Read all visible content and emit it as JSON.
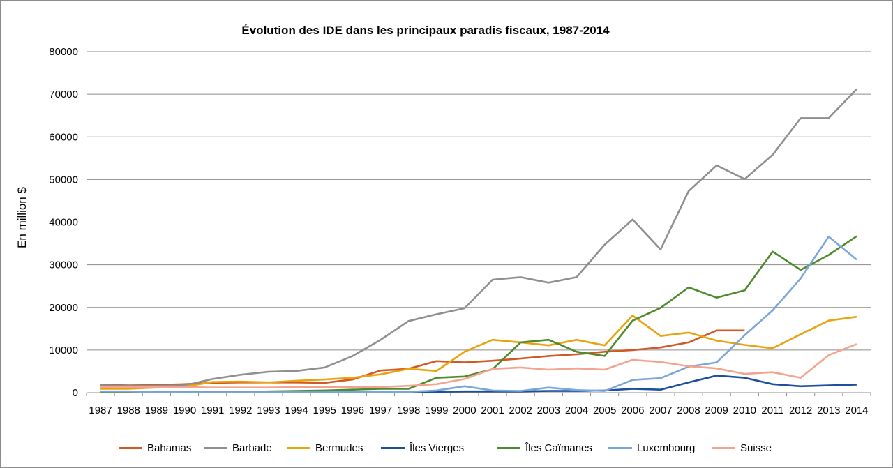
{
  "chart_data": {
    "type": "line",
    "title": "Évolution des IDE dans les principaux paradis fiscaux, 1987-2014",
    "xlabel": "",
    "ylabel": "En million $",
    "ylim": [
      0,
      80000
    ],
    "yticks": [
      "0",
      "10000",
      "20000",
      "30000",
      "40000",
      "50000",
      "60000",
      "70000",
      "80000"
    ],
    "grid": true,
    "legend_position": "bottom",
    "categories": [
      "1987",
      "1988",
      "1989",
      "1990",
      "1991",
      "1992",
      "1993",
      "1994",
      "1995",
      "1996",
      "1997",
      "1998",
      "1999",
      "2000",
      "2001",
      "2002",
      "2003",
      "2004",
      "2005",
      "2006",
      "2007",
      "2008",
      "2009",
      "2010",
      "2011",
      "2012",
      "2013",
      "2014"
    ],
    "series": [
      {
        "name": "Bahamas",
        "color": "#cf5a25",
        "values": [
          1900,
          1700,
          1800,
          2000,
          2300,
          2400,
          2400,
          2400,
          2300,
          3100,
          5200,
          5600,
          7400,
          7100,
          7500,
          8000,
          8600,
          9000,
          9600,
          10000,
          10600,
          11800,
          14600,
          14600,
          null,
          null,
          null,
          null
        ]
      },
      {
        "name": "Barbade",
        "color": "#8f8f8f",
        "values": [
          1700,
          1600,
          1600,
          1700,
          3200,
          4200,
          4900,
          5100,
          5900,
          8600,
          12400,
          16800,
          18400,
          19800,
          26500,
          27100,
          25800,
          27100,
          34700,
          40600,
          33600,
          47300,
          53300,
          50100,
          55800,
          64400,
          64400,
          71200
        ]
      },
      {
        "name": "Bermudes",
        "color": "#e9a30f",
        "values": [
          900,
          900,
          1200,
          1400,
          2500,
          2600,
          2400,
          2800,
          3100,
          3500,
          4300,
          5600,
          5100,
          9600,
          12400,
          11800,
          11100,
          12400,
          11100,
          18100,
          13300,
          14100,
          12200,
          11200,
          10400,
          13700,
          16900,
          17800
        ]
      },
      {
        "name": "Îles Vierges",
        "color": "#1e4f9a",
        "values": [
          100,
          100,
          100,
          100,
          100,
          100,
          100,
          200,
          200,
          200,
          200,
          200,
          200,
          300,
          300,
          300,
          400,
          400,
          500,
          900,
          700,
          2400,
          4000,
          3500,
          2000,
          1500,
          1700,
          1900
        ]
      },
      {
        "name": "Îles Caïmanes",
        "color": "#4c8b2b",
        "values": [
          100,
          100,
          100,
          100,
          200,
          200,
          300,
          400,
          500,
          700,
          900,
          900,
          3500,
          3800,
          5500,
          11800,
          12400,
          9600,
          8600,
          16900,
          19900,
          24700,
          22300,
          24000,
          33100,
          28800,
          32300,
          36700
        ]
      },
      {
        "name": "Luxembourg",
        "color": "#7aa6da",
        "values": [
          300,
          300,
          100,
          100,
          100,
          100,
          100,
          100,
          100,
          200,
          200,
          200,
          500,
          1500,
          500,
          400,
          1200,
          600,
          400,
          3000,
          3400,
          6100,
          7100,
          13500,
          19300,
          26800,
          36600,
          31200
        ]
      },
      {
        "name": "Suisse",
        "color": "#f2a48e",
        "values": [
          1300,
          1300,
          1300,
          1300,
          1200,
          1200,
          1200,
          1300,
          1300,
          1300,
          1300,
          1600,
          2000,
          3200,
          5600,
          5900,
          5400,
          5700,
          5400,
          7700,
          7200,
          6200,
          5700,
          4400,
          4800,
          3500,
          8800,
          11400
        ]
      }
    ]
  }
}
